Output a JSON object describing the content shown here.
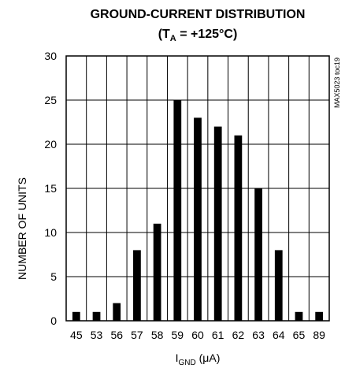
{
  "chart_data": {
    "type": "bar",
    "title": "GROUND-CURRENT DISTRIBUTION",
    "subtitle": {
      "prefix": "(T",
      "subscript": "A",
      "suffix": " = +125°C)"
    },
    "xlabel": {
      "main": "I",
      "subscript": "GND",
      "suffix": " (μA)"
    },
    "ylabel": "NUMBER OF UNITS",
    "categories": [
      "45",
      "53",
      "56",
      "57",
      "58",
      "59",
      "60",
      "61",
      "62",
      "63",
      "64",
      "65",
      "89"
    ],
    "values": [
      1,
      1,
      2,
      8,
      11,
      25,
      23,
      22,
      21,
      15,
      8,
      1,
      1
    ],
    "yticks": [
      "0",
      "5",
      "10",
      "15",
      "20",
      "25",
      "30"
    ],
    "ylim": [
      0,
      30
    ],
    "grid": true,
    "bar_color": "#000000",
    "grid_color": "#000000"
  },
  "side_code": "MAX5023 toc19"
}
